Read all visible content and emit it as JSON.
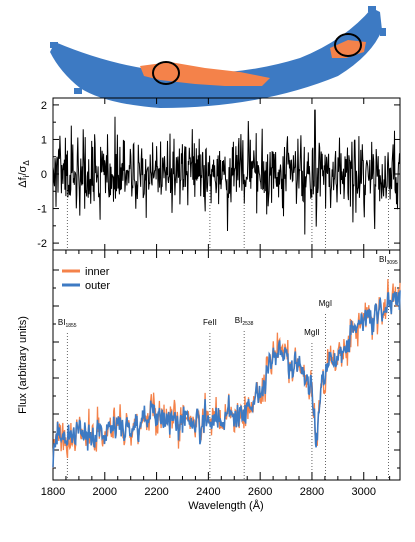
{
  "figure": {
    "colors": {
      "inner": "#f4824a",
      "outer": "#3d7ac3",
      "residual": "#000000",
      "arc": "#3d7ac3",
      "circle": "#000000"
    }
  },
  "chart_data": [
    {
      "type": "image",
      "panel": "arc-image",
      "description_hidden": true,
      "regions": [
        {
          "name": "inner",
          "color": "#f4824a"
        },
        {
          "name": "outer",
          "color": "#3d7ac3"
        }
      ]
    },
    {
      "type": "line",
      "panel": "residual",
      "ylabel_main": "Δf",
      "ylabel_sub1": "i",
      "ylabel_over": "/σ",
      "ylabel_sub2": "Δ",
      "xlim": [
        1800,
        3140
      ],
      "ylim": [
        -2.2,
        2.2
      ],
      "yticks": [
        "2",
        "1",
        "0",
        "-1",
        "-2"
      ],
      "ytick_values": [
        2,
        1,
        0,
        -1,
        -2
      ],
      "series": [
        {
          "color": "#000000",
          "seed": 17,
          "spike_x": 2812,
          "spike_y": 1.85
        }
      ]
    },
    {
      "type": "line",
      "panel": "spectrum",
      "xlabel": "Wavelength (Å)",
      "ylabel": "Flux (arbitrary units)",
      "xlim": [
        1800,
        3140
      ],
      "xticks": [
        "1800",
        "2000",
        "2200",
        "2400",
        "2600",
        "2800",
        "3000"
      ],
      "xtick_values": [
        1800,
        2000,
        2200,
        2400,
        2600,
        2800,
        3000
      ],
      "legend": {
        "placement": "top-left",
        "entries": [
          "inner",
          "outer"
        ]
      },
      "series": [
        {
          "name": "inner",
          "color": "#f4824a"
        },
        {
          "name": "outer",
          "color": "#3d7ac3"
        }
      ],
      "continuum": {
        "x": [
          1800,
          1900,
          2000,
          2100,
          2200,
          2300,
          2400,
          2500,
          2580,
          2620,
          2650,
          2700,
          2760,
          2800,
          2815,
          2840,
          2880,
          2950,
          3000,
          3060,
          3100,
          3140
        ],
        "y": [
          0.16,
          0.2,
          0.22,
          0.2,
          0.28,
          0.26,
          0.24,
          0.28,
          0.36,
          0.46,
          0.6,
          0.55,
          0.5,
          0.44,
          0.1,
          0.5,
          0.56,
          0.68,
          0.76,
          0.8,
          0.84,
          0.9
        ]
      },
      "line_markers": [
        {
          "x": 1855,
          "label": "BI",
          "sub": "1855"
        },
        {
          "x": 2406,
          "label": "FeII",
          "sub": ""
        },
        {
          "x": 2538,
          "label": "BI",
          "sub": "2538"
        },
        {
          "x": 2800,
          "label": "MgII",
          "sub": ""
        },
        {
          "x": 2852,
          "label": "MgI",
          "sub": ""
        },
        {
          "x": 3095,
          "label": "BI",
          "sub": "3095"
        }
      ]
    }
  ]
}
